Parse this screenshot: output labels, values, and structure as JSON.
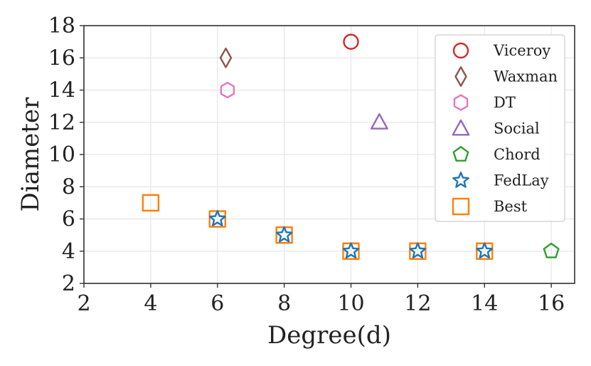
{
  "chart_data": {
    "type": "scatter",
    "xlabel": "Degree(d)",
    "ylabel": "Diameter",
    "xlim": [
      2,
      16.7
    ],
    "ylim": [
      2,
      18
    ],
    "xticks": [
      2,
      4,
      6,
      8,
      10,
      12,
      14,
      16
    ],
    "yticks": [
      2,
      4,
      6,
      8,
      10,
      12,
      14,
      16,
      18
    ],
    "grid": true,
    "legend_position": "top-right",
    "series": [
      {
        "name": "Viceroy",
        "marker": "circle",
        "color": "#d62728",
        "points": [
          {
            "x": 10,
            "y": 17
          }
        ]
      },
      {
        "name": "Waxman",
        "marker": "diamond",
        "color": "#8c564b",
        "points": [
          {
            "x": 6.25,
            "y": 16
          }
        ]
      },
      {
        "name": "DT",
        "marker": "hexagon",
        "color": "#e377c2",
        "points": [
          {
            "x": 6.3,
            "y": 14
          }
        ]
      },
      {
        "name": "Social",
        "marker": "triangle",
        "color": "#9467bd",
        "points": [
          {
            "x": 10.85,
            "y": 12
          }
        ]
      },
      {
        "name": "Chord",
        "marker": "pentagon",
        "color": "#2ca02c",
        "points": [
          {
            "x": 16,
            "y": 4
          }
        ]
      },
      {
        "name": "FedLay",
        "marker": "star",
        "color": "#1f77b4",
        "points": [
          {
            "x": 6,
            "y": 6
          },
          {
            "x": 8,
            "y": 5
          },
          {
            "x": 10,
            "y": 4
          },
          {
            "x": 12,
            "y": 4
          },
          {
            "x": 14,
            "y": 4
          }
        ]
      },
      {
        "name": "Best",
        "marker": "square",
        "color": "#ff7f0e",
        "points": [
          {
            "x": 4,
            "y": 7
          },
          {
            "x": 6,
            "y": 6
          },
          {
            "x": 8,
            "y": 5
          },
          {
            "x": 10,
            "y": 4
          },
          {
            "x": 12,
            "y": 4
          },
          {
            "x": 14,
            "y": 4
          }
        ]
      }
    ],
    "draw_order": [
      "Viceroy",
      "Waxman",
      "DT",
      "Social",
      "Chord",
      "Best",
      "FedLay"
    ]
  }
}
